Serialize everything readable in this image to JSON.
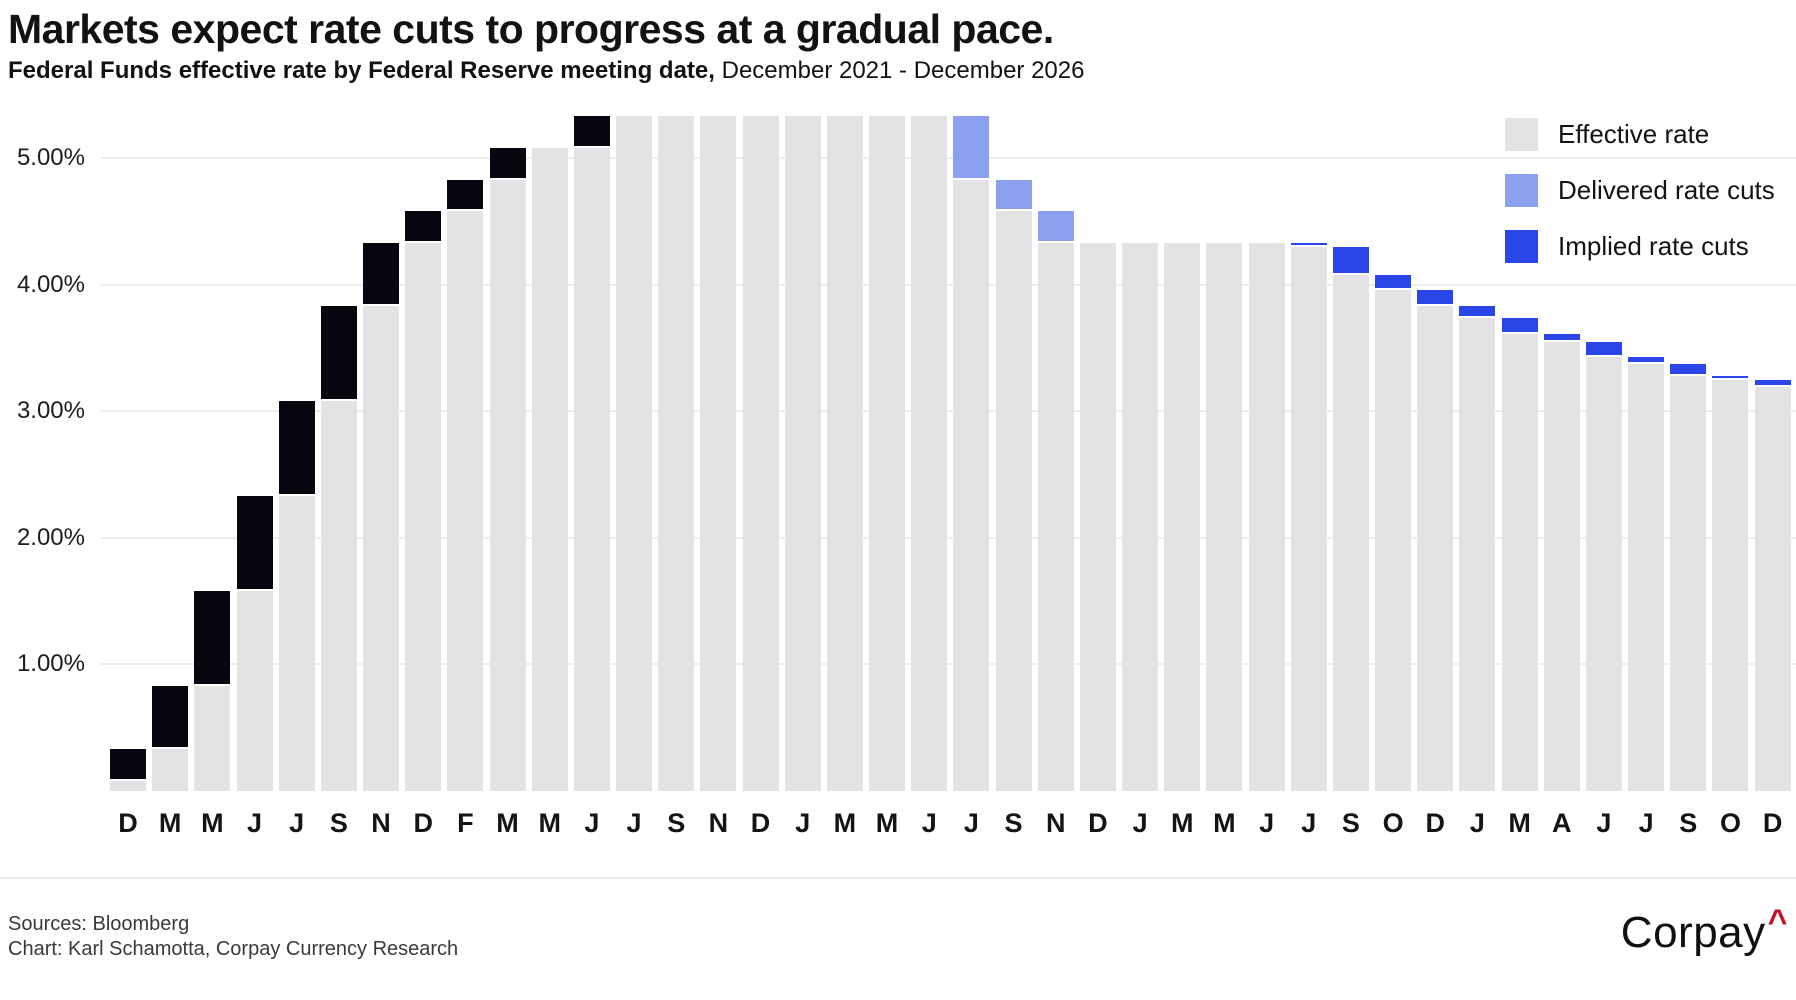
{
  "chart_data": {
    "type": "bar",
    "stacked": true,
    "title": "Markets expect rate cuts to progress at a gradual pace.",
    "subtitle_bold": "Federal Funds effective rate by Federal Reserve meeting date,",
    "subtitle_light": " December 2021 - December 2026",
    "ylim": [
      0,
      5.45
    ],
    "grid": true,
    "y_ticks": [
      {
        "value": 1,
        "label": "1.00%"
      },
      {
        "value": 2,
        "label": "2.00%"
      },
      {
        "value": 3,
        "label": "3.00%"
      },
      {
        "value": 4,
        "label": "4.00%"
      },
      {
        "value": 5,
        "label": "5.00%"
      }
    ],
    "legend_position": "top-right",
    "legend": [
      {
        "id": "effective",
        "label": "Effective rate",
        "color": "#e3e3e5"
      },
      {
        "id": "delivered",
        "label": "Delivered rate cuts",
        "color": "#8ba1f0"
      },
      {
        "id": "implied",
        "label": "Implied rate cuts",
        "color": "#2b46e8"
      }
    ],
    "segment_colors": {
      "base": "#e3e3e5",
      "hike": "#07070f",
      "cut-delivered": "#8ba1f0",
      "cut-implied": "#2b46e8"
    },
    "bars": [
      {
        "label": "D",
        "base": 0.08,
        "top": 0.33,
        "segment": "hike"
      },
      {
        "label": "M",
        "base": 0.33,
        "top": 0.83,
        "segment": "hike"
      },
      {
        "label": "M",
        "base": 0.83,
        "top": 1.58,
        "segment": "hike"
      },
      {
        "label": "J",
        "base": 1.58,
        "top": 2.33,
        "segment": "hike"
      },
      {
        "label": "J",
        "base": 2.33,
        "top": 3.08,
        "segment": "hike"
      },
      {
        "label": "S",
        "base": 3.08,
        "top": 3.83,
        "segment": "hike"
      },
      {
        "label": "N",
        "base": 3.83,
        "top": 4.33,
        "segment": "hike"
      },
      {
        "label": "D",
        "base": 4.33,
        "top": 4.58,
        "segment": "hike"
      },
      {
        "label": "F",
        "base": 4.58,
        "top": 4.83,
        "segment": "hike"
      },
      {
        "label": "M",
        "base": 4.83,
        "top": 5.08,
        "segment": "hike"
      },
      {
        "label": "M",
        "base": 5.08,
        "top": 5.08,
        "segment": "none"
      },
      {
        "label": "J",
        "base": 5.08,
        "top": 5.33,
        "segment": "hike"
      },
      {
        "label": "J",
        "base": 5.33,
        "top": 5.33,
        "segment": "none"
      },
      {
        "label": "S",
        "base": 5.33,
        "top": 5.33,
        "segment": "none"
      },
      {
        "label": "N",
        "base": 5.33,
        "top": 5.33,
        "segment": "none"
      },
      {
        "label": "D",
        "base": 5.33,
        "top": 5.33,
        "segment": "none"
      },
      {
        "label": "J",
        "base": 5.33,
        "top": 5.33,
        "segment": "none"
      },
      {
        "label": "M",
        "base": 5.33,
        "top": 5.33,
        "segment": "none"
      },
      {
        "label": "M",
        "base": 5.33,
        "top": 5.33,
        "segment": "none"
      },
      {
        "label": "J",
        "base": 5.33,
        "top": 5.33,
        "segment": "none"
      },
      {
        "label": "J",
        "base": 4.83,
        "top": 5.33,
        "segment": "cut-delivered"
      },
      {
        "label": "S",
        "base": 4.58,
        "top": 4.83,
        "segment": "cut-delivered"
      },
      {
        "label": "N",
        "base": 4.33,
        "top": 4.58,
        "segment": "cut-delivered"
      },
      {
        "label": "D",
        "base": 4.33,
        "top": 4.33,
        "segment": "none"
      },
      {
        "label": "J",
        "base": 4.33,
        "top": 4.33,
        "segment": "none"
      },
      {
        "label": "M",
        "base": 4.33,
        "top": 4.33,
        "segment": "none"
      },
      {
        "label": "M",
        "base": 4.33,
        "top": 4.33,
        "segment": "none"
      },
      {
        "label": "J",
        "base": 4.33,
        "top": 4.33,
        "segment": "none"
      },
      {
        "label": "J",
        "base": 4.3,
        "top": 4.33,
        "segment": "cut-implied"
      },
      {
        "label": "S",
        "base": 4.08,
        "top": 4.3,
        "segment": "cut-implied"
      },
      {
        "label": "O",
        "base": 3.96,
        "top": 4.08,
        "segment": "cut-implied"
      },
      {
        "label": "D",
        "base": 3.83,
        "top": 3.96,
        "segment": "cut-implied"
      },
      {
        "label": "J",
        "base": 3.74,
        "top": 3.83,
        "segment": "cut-implied"
      },
      {
        "label": "M",
        "base": 3.61,
        "top": 3.74,
        "segment": "cut-implied"
      },
      {
        "label": "A",
        "base": 3.55,
        "top": 3.61,
        "segment": "cut-implied"
      },
      {
        "label": "J",
        "base": 3.43,
        "top": 3.55,
        "segment": "cut-implied"
      },
      {
        "label": "J",
        "base": 3.37,
        "top": 3.43,
        "segment": "cut-implied"
      },
      {
        "label": "S",
        "base": 3.28,
        "top": 3.37,
        "segment": "cut-implied"
      },
      {
        "label": "O",
        "base": 3.25,
        "top": 3.28,
        "segment": "cut-implied"
      },
      {
        "label": "D",
        "base": 3.19,
        "top": 3.25,
        "segment": "cut-implied"
      }
    ]
  },
  "footer": {
    "sources": "Sources: Bloomberg",
    "credit": "Chart: Karl Schamotta, Corpay Currency Research",
    "logo_text": "Corpay",
    "logo_caret": "^"
  }
}
